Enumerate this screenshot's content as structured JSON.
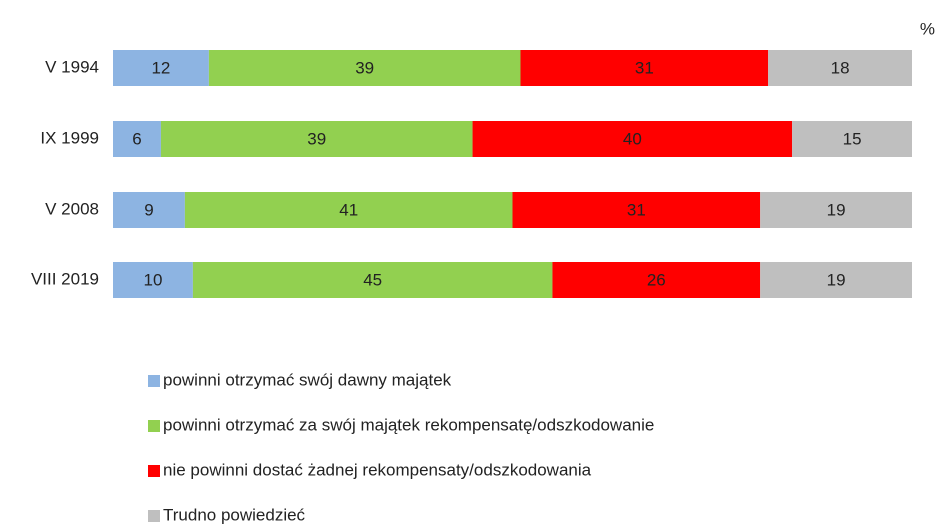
{
  "chart_data": {
    "type": "stacked-bar-horizontal",
    "unit_label": "%",
    "categories": [
      "V 1994",
      "IX 1999",
      "V 2008",
      "VIII 2019"
    ],
    "series": [
      {
        "name": "powinni otrzymać swój dawny majątek",
        "color": "#8db4e2",
        "values": [
          12,
          6,
          9,
          10
        ]
      },
      {
        "name": "powinni otrzymać za swój majątek rekompensatę/odszkodowanie",
        "color": "#92d050",
        "values": [
          39,
          39,
          41,
          45
        ]
      },
      {
        "name": "nie powinni dostać żadnej rekompensaty/odszkodowania",
        "color": "#ff0000",
        "values": [
          31,
          40,
          31,
          26
        ]
      },
      {
        "name": "Trudno powiedzieć",
        "color": "#bfbfbf",
        "values": [
          18,
          15,
          19,
          19
        ]
      }
    ],
    "xlim": [
      0,
      100
    ],
    "legend": "bottom"
  }
}
